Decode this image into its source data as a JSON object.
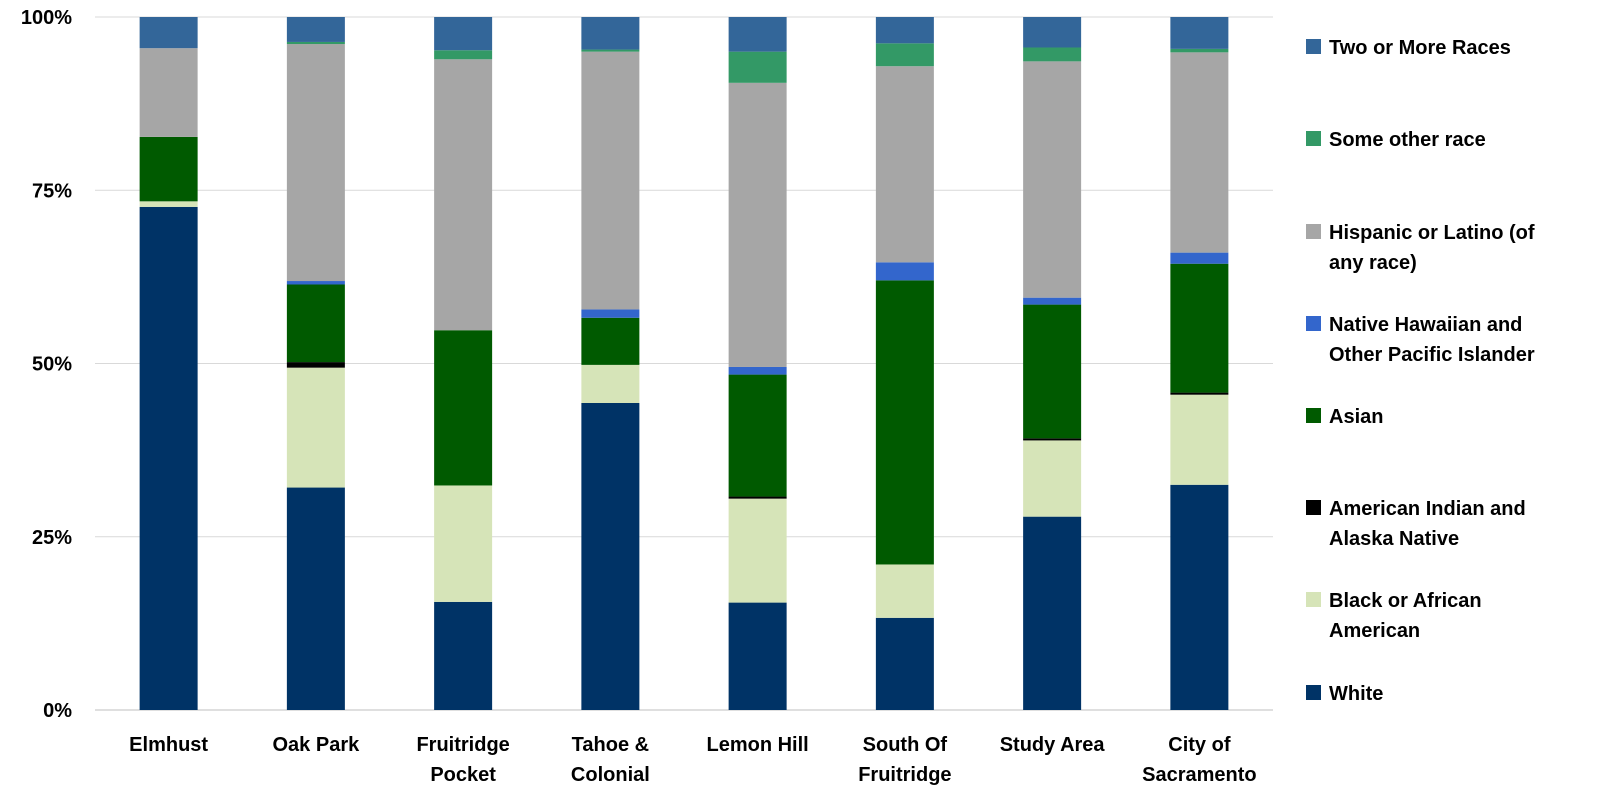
{
  "chart_data": {
    "type": "bar",
    "stacked": true,
    "normalized": true,
    "title": "",
    "xlabel": "",
    "ylabel": "",
    "ylim": [
      0,
      100
    ],
    "y_ticks": [
      "0%",
      "25%",
      "50%",
      "75%",
      "100%"
    ],
    "grid": "horizontal",
    "legend_position": "right",
    "categories": [
      [
        "Elmhust"
      ],
      [
        "Oak Park"
      ],
      [
        "Fruitridge",
        "Pocket"
      ],
      [
        "Tahoe &",
        "Colonial"
      ],
      [
        "Lemon Hill"
      ],
      [
        "South Of",
        "Fruitridge"
      ],
      [
        "Study Area"
      ],
      [
        "City of",
        "Sacramento"
      ]
    ],
    "series": [
      {
        "name": "White",
        "color": "#003366",
        "values": [
          72.6,
          32.1,
          15.6,
          44.3,
          15.5,
          13.3,
          27.9,
          32.5
        ]
      },
      {
        "name": "Black or African American",
        "color": "#D6E4B8",
        "values": [
          0.8,
          17.3,
          16.8,
          5.5,
          15.0,
          7.7,
          11.0,
          13.0
        ]
      },
      {
        "name": "American Indian and Alaska Native",
        "color": "#000000",
        "values": [
          0.0,
          0.8,
          0.0,
          0.0,
          0.3,
          0.0,
          0.3,
          0.3
        ]
      },
      {
        "name": "Asian",
        "color": "#005A00",
        "values": [
          9.3,
          11.2,
          22.4,
          6.8,
          17.6,
          41.0,
          19.3,
          18.6
        ]
      },
      {
        "name": "Native Hawaiian and Other Pacific Islander",
        "color": "#3366CC",
        "values": [
          0.0,
          0.5,
          0.0,
          1.2,
          1.1,
          2.6,
          1.0,
          1.6
        ]
      },
      {
        "name": "Hispanic or Latino (of any race)",
        "color": "#A6A6A6",
        "values": [
          12.8,
          34.2,
          39.1,
          37.2,
          41.0,
          28.3,
          34.1,
          28.9
        ]
      },
      {
        "name": "Some other race",
        "color": "#339966",
        "values": [
          0.0,
          0.3,
          1.3,
          0.3,
          4.5,
          3.3,
          2.0,
          0.5
        ]
      },
      {
        "name": "Two or More Races",
        "color": "#336699",
        "values": [
          4.5,
          3.6,
          4.8,
          4.7,
          5.0,
          3.8,
          4.4,
          4.6
        ]
      }
    ],
    "legend": [
      {
        "lines": [
          "Two or More Races"
        ],
        "color": "#336699"
      },
      {
        "lines": [
          "Some other race"
        ],
        "color": "#339966"
      },
      {
        "lines": [
          "Hispanic or Latino (of",
          "any race)"
        ],
        "color": "#A6A6A6"
      },
      {
        "lines": [
          "Native Hawaiian and",
          "Other Pacific Islander"
        ],
        "color": "#3366CC"
      },
      {
        "lines": [
          "Asian"
        ],
        "color": "#005A00"
      },
      {
        "lines": [
          "American Indian and",
          "Alaska Native"
        ],
        "color": "#000000"
      },
      {
        "lines": [
          "Black or African",
          "American"
        ],
        "color": "#D6E4B8"
      },
      {
        "lines": [
          "White"
        ],
        "color": "#003366"
      }
    ],
    "gridline_color": "#D9D9D9"
  }
}
